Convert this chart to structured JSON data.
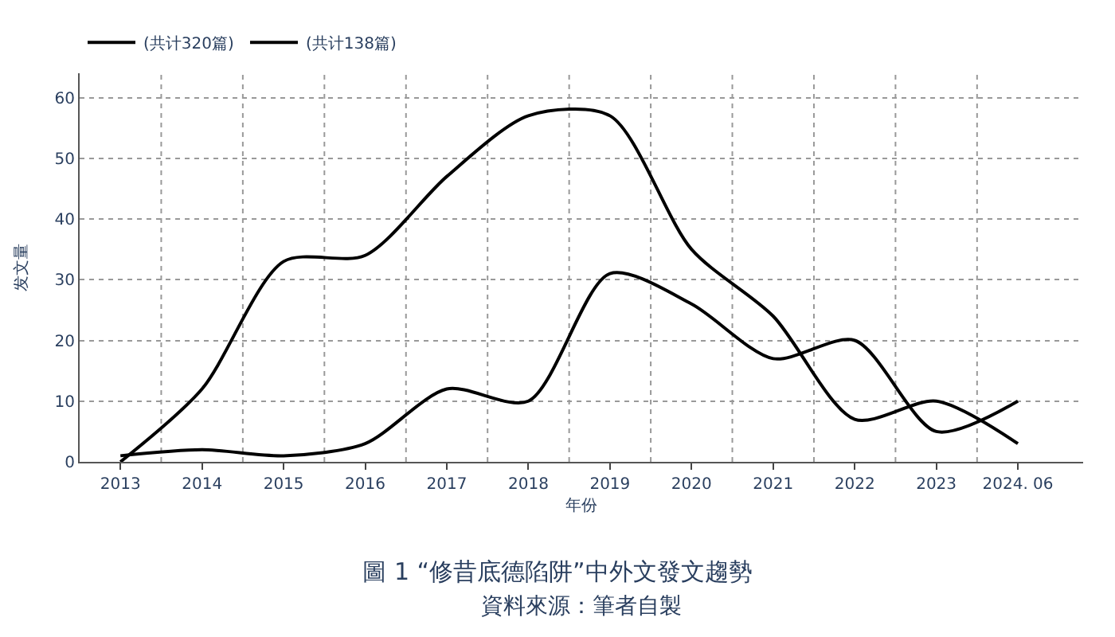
{
  "chart_data": {
    "type": "line",
    "title": "圖 1 “修昔底德陷阱”中外文發文趨勢",
    "xlabel": "年份",
    "ylabel": "发文量",
    "categories": [
      "2013",
      "2014",
      "2015",
      "2016",
      "2017",
      "2018",
      "2019",
      "2020",
      "2021",
      "2022",
      "2023",
      "2024. 06"
    ],
    "series": [
      {
        "name": "(共计320篇)",
        "color": "#000000",
        "values": [
          0,
          12,
          33,
          34,
          47,
          57,
          57,
          35,
          24,
          7,
          10,
          3
        ]
      },
      {
        "name": "(共计138篇)",
        "color": "#000000",
        "values": [
          1,
          2,
          1,
          3,
          12,
          10,
          31,
          26,
          17,
          20,
          5,
          10
        ]
      }
    ],
    "ylim": [
      0,
      64
    ],
    "yticks": [
      0,
      10,
      20,
      30,
      40,
      50,
      60
    ],
    "grid": true,
    "legend": "top left",
    "marker": "none",
    "line_style": "solid",
    "annotations": [
      "資料來源：筆者自製"
    ]
  }
}
